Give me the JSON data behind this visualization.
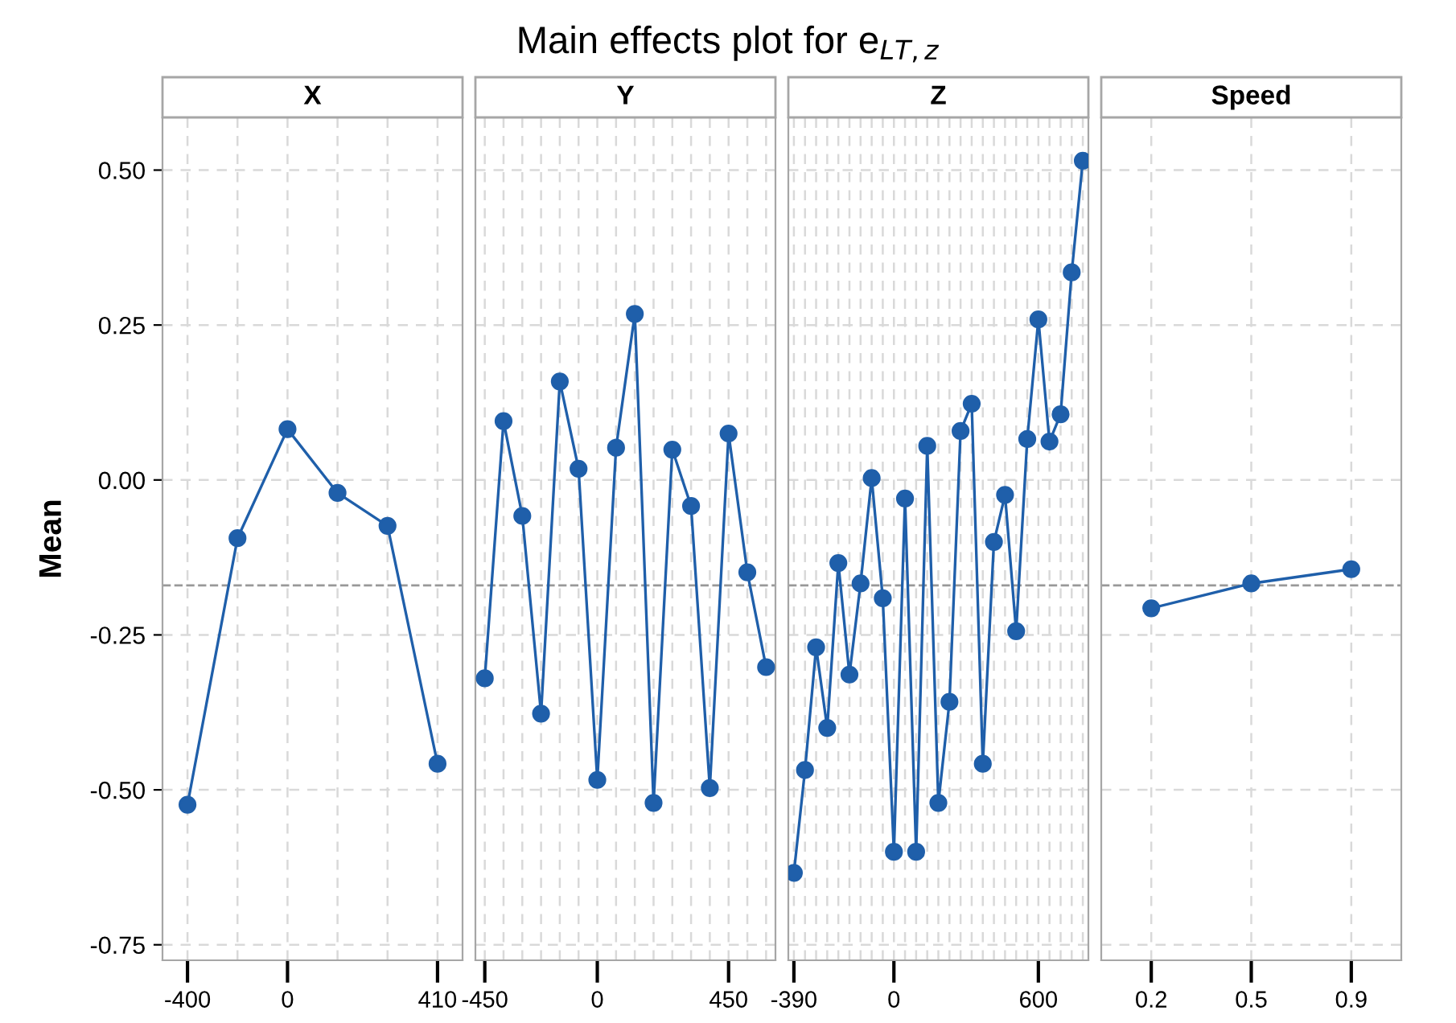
{
  "chart_data": [
    {
      "type": "line",
      "subtitle": "X",
      "ylabel": "Mean",
      "annotations": [
        "Main effects plot for e$_{LT,z}$"
      ],
      "categories": [
        "-400",
        null,
        "0",
        null,
        null,
        "410"
      ],
      "series": [
        {
          "color": "#1f5faa",
          "values": [
            -0.524,
            -0.094,
            0.082,
            -0.021,
            -0.074,
            -0.458
          ]
        }
      ],
      "ylim": [
        -0.775,
        0.585
      ],
      "yticks": [
        {
          "value": -0.75,
          "label": "-0.75"
        },
        {
          "value": -0.5,
          "label": "-0.50"
        },
        {
          "value": -0.25,
          "label": "-0.25"
        },
        {
          "value": 0,
          "label": "0.00"
        },
        {
          "value": 0.25,
          "label": "0.25"
        },
        {
          "value": 0.5,
          "label": "0.50"
        }
      ],
      "ref_lines": [
        {
          "axis": "y",
          "value": -0.17,
          "color": "#999999",
          "line_style": "dashed"
        }
      ],
      "grid": true,
      "marker": "circle",
      "line_style": "solid"
    },
    {
      "type": "line",
      "subtitle": "Y",
      "categories": [
        "-450",
        null,
        null,
        null,
        null,
        null,
        "0",
        null,
        null,
        null,
        null,
        null,
        null,
        "450",
        null,
        null
      ],
      "series": [
        {
          "color": "#1f5faa",
          "values": [
            -0.32,
            0.095,
            -0.058,
            -0.377,
            0.159,
            0.018,
            -0.484,
            0.052,
            0.268,
            -0.521,
            0.049,
            -0.042,
            -0.497,
            0.075,
            -0.149,
            -0.302
          ]
        }
      ],
      "ylim": [
        -0.775,
        0.585
      ],
      "yticks": [
        {
          "value": -0.75,
          "label": null
        },
        {
          "value": -0.5,
          "label": null
        },
        {
          "value": -0.25,
          "label": null
        },
        {
          "value": 0,
          "label": null
        },
        {
          "value": 0.25,
          "label": null
        },
        {
          "value": 0.5,
          "label": null
        }
      ],
      "ref_lines": [
        {
          "axis": "y",
          "value": -0.17,
          "color": "#999999",
          "line_style": "dashed"
        }
      ],
      "grid": true,
      "marker": "circle",
      "line_style": "solid",
      "tick_labels": "x"
    },
    {
      "type": "line",
      "subtitle": "Z",
      "categories": [
        "-390",
        null,
        null,
        null,
        null,
        null,
        null,
        null,
        null,
        "0",
        null,
        null,
        null,
        null,
        null,
        null,
        null,
        null,
        null,
        null,
        null,
        null,
        "600",
        null,
        null,
        null,
        null
      ],
      "series": [
        {
          "color": "#1f5faa",
          "values": [
            -0.634,
            -0.468,
            -0.27,
            -0.4,
            -0.134,
            -0.314,
            -0.167,
            0.003,
            -0.191,
            -0.6,
            -0.03,
            -0.6,
            0.055,
            -0.521,
            -0.358,
            0.079,
            0.123,
            -0.458,
            -0.1,
            -0.024,
            -0.244,
            0.066,
            0.259,
            0.062,
            0.106,
            0.335,
            0.515
          ]
        }
      ],
      "ylim": [
        -0.775,
        0.585
      ],
      "yticks": [
        {
          "value": -0.75,
          "label": null
        },
        {
          "value": -0.5,
          "label": null
        },
        {
          "value": -0.25,
          "label": null
        },
        {
          "value": 0,
          "label": null
        },
        {
          "value": 0.25,
          "label": null
        },
        {
          "value": 0.5,
          "label": null
        }
      ],
      "ref_lines": [
        {
          "axis": "y",
          "value": -0.17,
          "color": "#999999",
          "line_style": "dashed"
        }
      ],
      "grid": true,
      "marker": "circle",
      "line_style": "solid",
      "tick_labels": "x"
    },
    {
      "type": "line",
      "subtitle": "Speed",
      "categories": [
        "0.2",
        "0.5",
        "0.9"
      ],
      "series": [
        {
          "color": "#1f5faa",
          "values": [
            -0.207,
            -0.167,
            -0.144
          ]
        }
      ],
      "ylim": [
        -0.775,
        0.585
      ],
      "yticks": [
        {
          "value": -0.75,
          "label": null
        },
        {
          "value": -0.5,
          "label": null
        },
        {
          "value": -0.25,
          "label": null
        },
        {
          "value": 0,
          "label": null
        },
        {
          "value": 0.25,
          "label": null
        },
        {
          "value": 0.5,
          "label": null
        }
      ],
      "ref_lines": [
        {
          "axis": "y",
          "value": -0.17,
          "color": "#999999",
          "line_style": "dashed"
        }
      ],
      "grid": true,
      "marker": "circle",
      "line_style": "solid",
      "tick_labels": "x"
    }
  ]
}
